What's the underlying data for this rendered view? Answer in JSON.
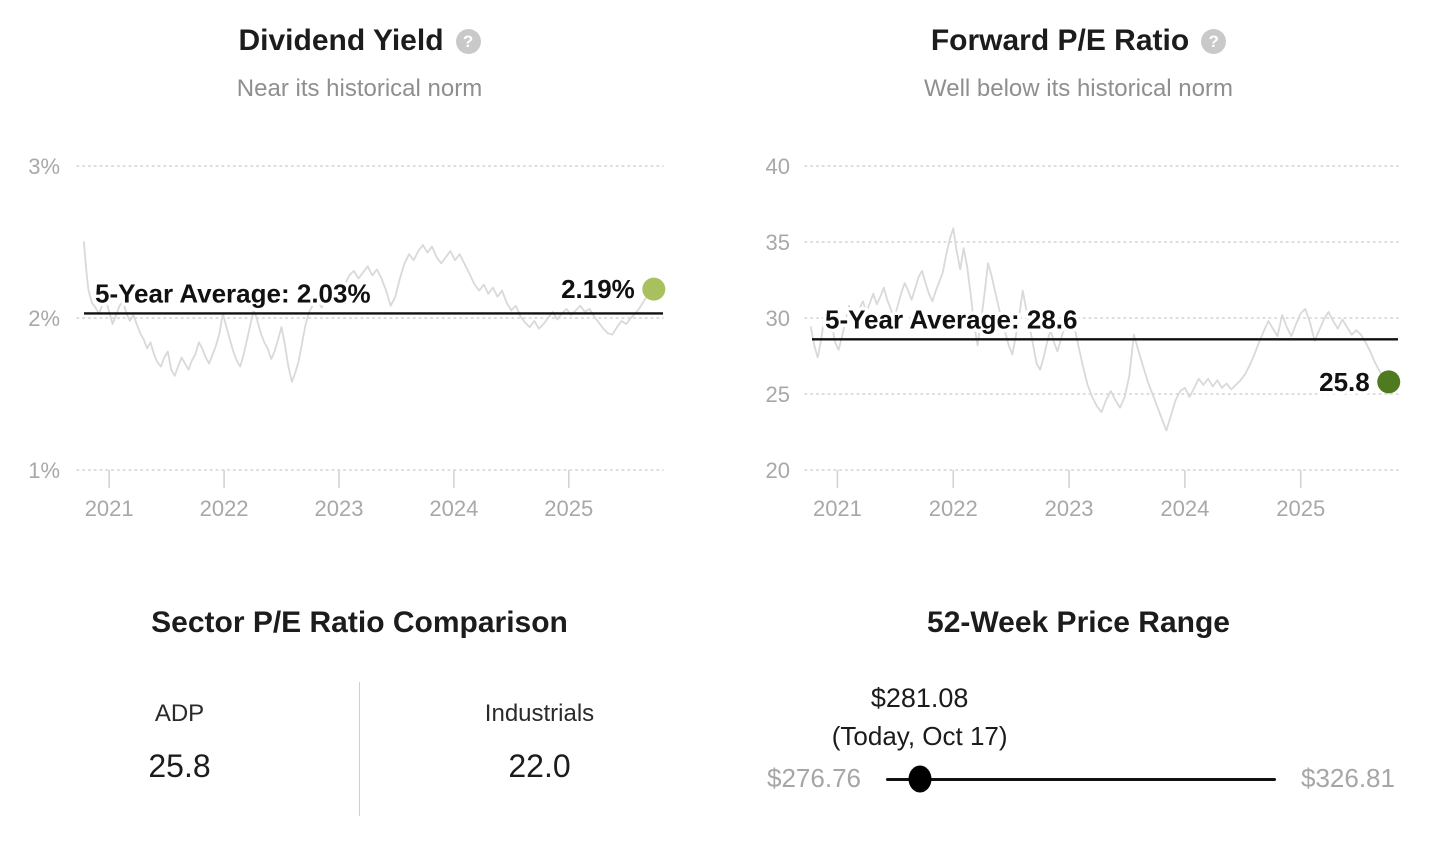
{
  "chart_data": [
    {
      "type": "line",
      "title": "Dividend Yield",
      "subtitle": "Near its historical norm",
      "help_glyph": "?",
      "x_ticks": [
        2021,
        2022,
        2023,
        2024,
        2025
      ],
      "y_ticks": [
        {
          "value": 3,
          "label": "3%"
        },
        {
          "value": 2,
          "label": "2%"
        },
        {
          "value": 1,
          "label": "1%"
        }
      ],
      "xlim": [
        2020.72,
        2025.82
      ],
      "ylim": [
        1,
        3
      ],
      "grid": "dotted-horizontal",
      "legend": "none",
      "line_color": "#d9d9d9",
      "average_line": {
        "value": 2.03,
        "label": "5-Year Average: 2.03%"
      },
      "end_point": {
        "value": 2.19,
        "label": "2.19%",
        "color": "#a9c05e"
      },
      "points": [
        [
          2020.78,
          2.5
        ],
        [
          2020.8,
          2.32
        ],
        [
          2020.82,
          2.18
        ],
        [
          2020.85,
          2.1
        ],
        [
          2020.88,
          2.07
        ],
        [
          2020.91,
          2.03
        ],
        [
          2020.94,
          2.08
        ],
        [
          2020.97,
          2.12
        ],
        [
          2021.0,
          2.04
        ],
        [
          2021.03,
          1.96
        ],
        [
          2021.06,
          2.02
        ],
        [
          2021.09,
          2.08
        ],
        [
          2021.12,
          2.11
        ],
        [
          2021.15,
          2.03
        ],
        [
          2021.18,
          1.98
        ],
        [
          2021.21,
          2.02
        ],
        [
          2021.24,
          1.96
        ],
        [
          2021.27,
          1.9
        ],
        [
          2021.3,
          1.86
        ],
        [
          2021.33,
          1.8
        ],
        [
          2021.36,
          1.84
        ],
        [
          2021.39,
          1.76
        ],
        [
          2021.42,
          1.71
        ],
        [
          2021.45,
          1.68
        ],
        [
          2021.48,
          1.74
        ],
        [
          2021.51,
          1.78
        ],
        [
          2021.54,
          1.66
        ],
        [
          2021.57,
          1.62
        ],
        [
          2021.6,
          1.68
        ],
        [
          2021.63,
          1.74
        ],
        [
          2021.66,
          1.7
        ],
        [
          2021.69,
          1.66
        ],
        [
          2021.72,
          1.72
        ],
        [
          2021.75,
          1.76
        ],
        [
          2021.78,
          1.84
        ],
        [
          2021.81,
          1.8
        ],
        [
          2021.84,
          1.74
        ],
        [
          2021.87,
          1.7
        ],
        [
          2021.9,
          1.76
        ],
        [
          2021.93,
          1.82
        ],
        [
          2021.96,
          1.9
        ],
        [
          2021.99,
          2.03
        ],
        [
          2022.02,
          1.94
        ],
        [
          2022.05,
          1.86
        ],
        [
          2022.08,
          1.78
        ],
        [
          2022.11,
          1.72
        ],
        [
          2022.14,
          1.68
        ],
        [
          2022.17,
          1.76
        ],
        [
          2022.2,
          1.86
        ],
        [
          2022.23,
          1.96
        ],
        [
          2022.26,
          2.06
        ],
        [
          2022.29,
          1.98
        ],
        [
          2022.32,
          1.9
        ],
        [
          2022.35,
          1.84
        ],
        [
          2022.38,
          1.8
        ],
        [
          2022.41,
          1.73
        ],
        [
          2022.44,
          1.78
        ],
        [
          2022.47,
          1.86
        ],
        [
          2022.5,
          1.94
        ],
        [
          2022.53,
          1.82
        ],
        [
          2022.56,
          1.68
        ],
        [
          2022.59,
          1.58
        ],
        [
          2022.62,
          1.64
        ],
        [
          2022.65,
          1.72
        ],
        [
          2022.68,
          1.84
        ],
        [
          2022.71,
          1.96
        ],
        [
          2022.74,
          2.04
        ],
        [
          2022.77,
          2.08
        ],
        [
          2022.81,
          2.12
        ],
        [
          2022.85,
          2.07
        ],
        [
          2022.89,
          2.12
        ],
        [
          2022.93,
          2.16
        ],
        [
          2022.97,
          2.1
        ],
        [
          2023.01,
          2.16
        ],
        [
          2023.05,
          2.22
        ],
        [
          2023.09,
          2.28
        ],
        [
          2023.13,
          2.31
        ],
        [
          2023.17,
          2.26
        ],
        [
          2023.21,
          2.3
        ],
        [
          2023.25,
          2.34
        ],
        [
          2023.29,
          2.28
        ],
        [
          2023.33,
          2.32
        ],
        [
          2023.37,
          2.26
        ],
        [
          2023.41,
          2.18
        ],
        [
          2023.45,
          2.08
        ],
        [
          2023.49,
          2.14
        ],
        [
          2023.53,
          2.26
        ],
        [
          2023.57,
          2.36
        ],
        [
          2023.61,
          2.42
        ],
        [
          2023.65,
          2.38
        ],
        [
          2023.69,
          2.44
        ],
        [
          2023.73,
          2.48
        ],
        [
          2023.77,
          2.43
        ],
        [
          2023.81,
          2.47
        ],
        [
          2023.85,
          2.4
        ],
        [
          2023.89,
          2.36
        ],
        [
          2023.93,
          2.4
        ],
        [
          2023.97,
          2.44
        ],
        [
          2024.01,
          2.38
        ],
        [
          2024.05,
          2.42
        ],
        [
          2024.09,
          2.36
        ],
        [
          2024.13,
          2.3
        ],
        [
          2024.18,
          2.22
        ],
        [
          2024.22,
          2.18
        ],
        [
          2024.26,
          2.22
        ],
        [
          2024.3,
          2.16
        ],
        [
          2024.34,
          2.2
        ],
        [
          2024.38,
          2.14
        ],
        [
          2024.42,
          2.18
        ],
        [
          2024.46,
          2.1
        ],
        [
          2024.5,
          2.05
        ],
        [
          2024.54,
          2.08
        ],
        [
          2024.58,
          2.01
        ],
        [
          2024.62,
          1.97
        ],
        [
          2024.66,
          1.94
        ],
        [
          2024.7,
          1.98
        ],
        [
          2024.74,
          1.93
        ],
        [
          2024.78,
          1.96
        ],
        [
          2024.82,
          2.0
        ],
        [
          2024.86,
          2.04
        ],
        [
          2024.9,
          1.99
        ],
        [
          2024.94,
          2.03
        ],
        [
          2024.98,
          2.06
        ],
        [
          2025.02,
          2.02
        ],
        [
          2025.06,
          2.05
        ],
        [
          2025.1,
          2.08
        ],
        [
          2025.14,
          2.04
        ],
        [
          2025.18,
          2.06
        ],
        [
          2025.22,
          2.01
        ],
        [
          2025.26,
          1.97
        ],
        [
          2025.3,
          1.93
        ],
        [
          2025.34,
          1.9
        ],
        [
          2025.38,
          1.89
        ],
        [
          2025.42,
          1.94
        ],
        [
          2025.46,
          1.98
        ],
        [
          2025.5,
          1.96
        ],
        [
          2025.54,
          2.0
        ],
        [
          2025.58,
          2.03
        ],
        [
          2025.62,
          2.07
        ],
        [
          2025.66,
          2.12
        ],
        [
          2025.7,
          2.16
        ],
        [
          2025.74,
          2.19
        ]
      ]
    },
    {
      "type": "line",
      "title": "Forward P/E Ratio",
      "subtitle": "Well below its historical norm",
      "help_glyph": "?",
      "x_ticks": [
        2021,
        2022,
        2023,
        2024,
        2025
      ],
      "y_ticks": [
        {
          "value": 40,
          "label": "40"
        },
        {
          "value": 35,
          "label": "35"
        },
        {
          "value": 30,
          "label": "30"
        },
        {
          "value": 25,
          "label": "25"
        },
        {
          "value": 20,
          "label": "20"
        }
      ],
      "xlim": [
        2020.72,
        2025.84
      ],
      "ylim": [
        20,
        40
      ],
      "grid": "dotted-horizontal",
      "legend": "none",
      "line_color": "#d9d9d9",
      "average_line": {
        "value": 28.6,
        "label": "5-Year Average: 28.6"
      },
      "end_point": {
        "value": 25.8,
        "label": "25.8",
        "color": "#507a20"
      },
      "points": [
        [
          2020.77,
          29.4
        ],
        [
          2020.8,
          28.2
        ],
        [
          2020.83,
          27.4
        ],
        [
          2020.86,
          28.6
        ],
        [
          2020.89,
          30.2
        ],
        [
          2020.92,
          30.6
        ],
        [
          2020.95,
          29.6
        ],
        [
          2020.98,
          28.4
        ],
        [
          2021.01,
          27.9
        ],
        [
          2021.04,
          28.8
        ],
        [
          2021.07,
          29.8
        ],
        [
          2021.1,
          30.8
        ],
        [
          2021.13,
          30.2
        ],
        [
          2021.16,
          29.6
        ],
        [
          2021.19,
          30.6
        ],
        [
          2021.22,
          31.1
        ],
        [
          2021.25,
          30.4
        ],
        [
          2021.28,
          31.0
        ],
        [
          2021.31,
          31.6
        ],
        [
          2021.34,
          30.9
        ],
        [
          2021.37,
          31.4
        ],
        [
          2021.4,
          32.0
        ],
        [
          2021.43,
          31.2
        ],
        [
          2021.46,
          30.6
        ],
        [
          2021.49,
          30.0
        ],
        [
          2021.52,
          30.8
        ],
        [
          2021.55,
          31.6
        ],
        [
          2021.58,
          32.3
        ],
        [
          2021.61,
          31.8
        ],
        [
          2021.64,
          31.2
        ],
        [
          2021.67,
          31.9
        ],
        [
          2021.7,
          32.7
        ],
        [
          2021.73,
          33.1
        ],
        [
          2021.76,
          32.3
        ],
        [
          2021.79,
          31.6
        ],
        [
          2021.82,
          31.1
        ],
        [
          2021.85,
          31.8
        ],
        [
          2021.88,
          32.4
        ],
        [
          2021.91,
          33.0
        ],
        [
          2021.94,
          34.2
        ],
        [
          2021.97,
          35.2
        ],
        [
          2022.0,
          35.9
        ],
        [
          2022.03,
          34.4
        ],
        [
          2022.06,
          33.2
        ],
        [
          2022.09,
          34.6
        ],
        [
          2022.12,
          33.4
        ],
        [
          2022.15,
          31.6
        ],
        [
          2022.18,
          29.6
        ],
        [
          2022.21,
          28.2
        ],
        [
          2022.24,
          29.8
        ],
        [
          2022.27,
          31.6
        ],
        [
          2022.3,
          33.6
        ],
        [
          2022.33,
          32.8
        ],
        [
          2022.36,
          31.8
        ],
        [
          2022.39,
          30.8
        ],
        [
          2022.42,
          29.8
        ],
        [
          2022.45,
          29.0
        ],
        [
          2022.48,
          28.2
        ],
        [
          2022.51,
          27.6
        ],
        [
          2022.54,
          28.8
        ],
        [
          2022.57,
          30.2
        ],
        [
          2022.6,
          31.8
        ],
        [
          2022.63,
          30.6
        ],
        [
          2022.66,
          29.4
        ],
        [
          2022.69,
          28.2
        ],
        [
          2022.72,
          27.0
        ],
        [
          2022.75,
          26.6
        ],
        [
          2022.78,
          27.4
        ],
        [
          2022.81,
          28.4
        ],
        [
          2022.84,
          29.2
        ],
        [
          2022.87,
          28.4
        ],
        [
          2022.9,
          27.8
        ],
        [
          2022.93,
          28.6
        ],
        [
          2022.96,
          29.4
        ],
        [
          2023.0,
          30.6
        ],
        [
          2023.04,
          29.6
        ],
        [
          2023.08,
          28.2
        ],
        [
          2023.12,
          26.8
        ],
        [
          2023.16,
          25.6
        ],
        [
          2023.2,
          24.8
        ],
        [
          2023.24,
          24.2
        ],
        [
          2023.28,
          23.8
        ],
        [
          2023.32,
          24.6
        ],
        [
          2023.36,
          25.2
        ],
        [
          2023.4,
          24.6
        ],
        [
          2023.44,
          24.1
        ],
        [
          2023.48,
          24.8
        ],
        [
          2023.52,
          26.2
        ],
        [
          2023.56,
          28.9
        ],
        [
          2023.6,
          27.8
        ],
        [
          2023.64,
          26.8
        ],
        [
          2023.68,
          25.8
        ],
        [
          2023.72,
          25.0
        ],
        [
          2023.76,
          24.2
        ],
        [
          2023.8,
          23.4
        ],
        [
          2023.84,
          22.6
        ],
        [
          2023.88,
          23.6
        ],
        [
          2023.92,
          24.6
        ],
        [
          2023.96,
          25.2
        ],
        [
          2024.0,
          25.4
        ],
        [
          2024.04,
          24.8
        ],
        [
          2024.08,
          25.4
        ],
        [
          2024.12,
          26.0
        ],
        [
          2024.16,
          25.6
        ],
        [
          2024.2,
          26.0
        ],
        [
          2024.24,
          25.5
        ],
        [
          2024.28,
          25.9
        ],
        [
          2024.32,
          25.4
        ],
        [
          2024.36,
          25.7
        ],
        [
          2024.4,
          25.3
        ],
        [
          2024.44,
          25.6
        ],
        [
          2024.48,
          25.9
        ],
        [
          2024.52,
          26.3
        ],
        [
          2024.56,
          26.9
        ],
        [
          2024.6,
          27.6
        ],
        [
          2024.64,
          28.4
        ],
        [
          2024.68,
          29.1
        ],
        [
          2024.72,
          29.8
        ],
        [
          2024.76,
          29.3
        ],
        [
          2024.8,
          28.8
        ],
        [
          2024.84,
          30.2
        ],
        [
          2024.88,
          29.4
        ],
        [
          2024.92,
          28.8
        ],
        [
          2024.96,
          29.6
        ],
        [
          2025.0,
          30.3
        ],
        [
          2025.04,
          30.6
        ],
        [
          2025.08,
          29.7
        ],
        [
          2025.12,
          28.5
        ],
        [
          2025.16,
          29.2
        ],
        [
          2025.2,
          29.9
        ],
        [
          2025.24,
          30.4
        ],
        [
          2025.28,
          29.8
        ],
        [
          2025.32,
          29.3
        ],
        [
          2025.36,
          29.9
        ],
        [
          2025.4,
          29.4
        ],
        [
          2025.44,
          28.9
        ],
        [
          2025.48,
          29.2
        ],
        [
          2025.52,
          28.9
        ],
        [
          2025.56,
          28.4
        ],
        [
          2025.6,
          27.8
        ],
        [
          2025.64,
          27.1
        ],
        [
          2025.68,
          26.5
        ],
        [
          2025.72,
          26.0
        ],
        [
          2025.76,
          25.8
        ]
      ]
    }
  ],
  "sector_comparison": {
    "title": "Sector P/E Ratio Comparison",
    "columns": [
      {
        "label": "ADP",
        "value": "25.8"
      },
      {
        "label": "Industrials",
        "value": "22.0"
      }
    ]
  },
  "price_range": {
    "title": "52-Week Price Range",
    "current_price": "$281.08",
    "current_note": "(Today, Oct 17)",
    "low": "$276.76",
    "high": "$326.81"
  },
  "colors": {
    "dividend_dot": "#a9c05e",
    "pe_dot": "#507a20",
    "series_line": "#d9d9d9",
    "average_line": "#111111",
    "axis_text": "#a8a8a8"
  }
}
